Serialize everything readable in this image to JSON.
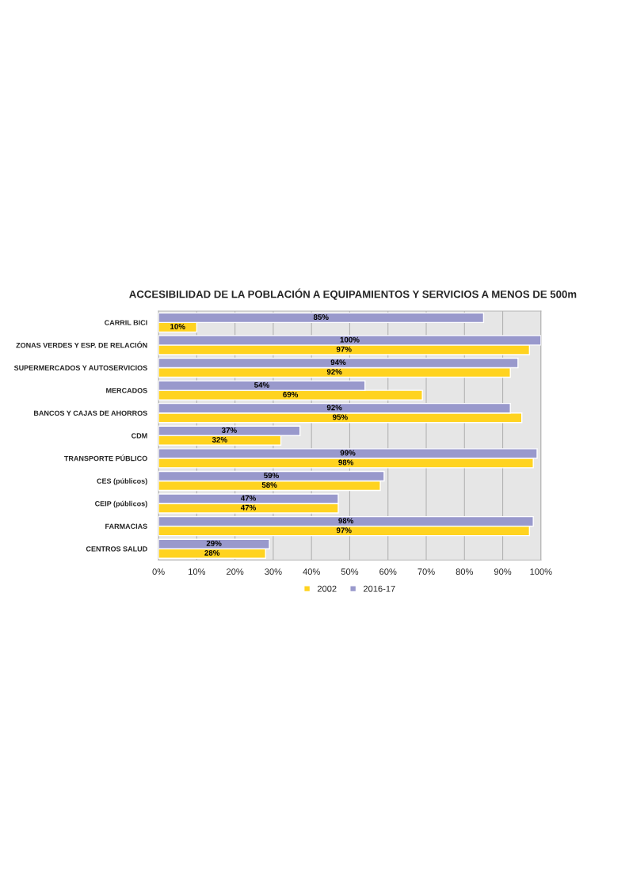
{
  "chart_data": {
    "type": "bar",
    "orientation": "horizontal",
    "title": "ACCESIBILIDAD DE LA POBLACIÓN A EQUIPAMIENTOS Y SERVICIOS A MENOS DE 500m",
    "categories": [
      "CARRIL BICI",
      "ZONAS VERDES Y ESP. DE RELACIÓN",
      "SUPERMERCADOS Y AUTOSERVICIOS",
      "MERCADOS",
      "BANCOS Y CAJAS DE AHORROS",
      "CDM",
      "TRANSPORTE PÚBLICO",
      "CES (públicos)",
      "CEIP (públicos)",
      "FARMACIAS",
      "CENTROS SALUD"
    ],
    "series": [
      {
        "name": "2002",
        "color": "#ffd320",
        "values": [
          10,
          97,
          92,
          69,
          95,
          32,
          98,
          58,
          47,
          97,
          28
        ],
        "value_labels": [
          "10%",
          "97%",
          "92%",
          "69%",
          "95%",
          "32%",
          "98%",
          "58%",
          "47%",
          "97%",
          "28%"
        ]
      },
      {
        "name": "2016-17",
        "color": "#9999cc",
        "values": [
          85,
          100,
          94,
          54,
          92,
          37,
          99,
          59,
          47,
          98,
          29
        ],
        "value_labels": [
          "85%",
          "100%",
          "94%",
          "54%",
          "92%",
          "37%",
          "99%",
          "59%",
          "47%",
          "98%",
          "29%"
        ]
      }
    ],
    "xlim": [
      0,
      100
    ],
    "xticks": [
      {
        "value": 0,
        "label": "0%"
      },
      {
        "value": 10,
        "label": "10%"
      },
      {
        "value": 20,
        "label": "20%"
      },
      {
        "value": 30,
        "label": "30%"
      },
      {
        "value": 40,
        "label": "40%"
      },
      {
        "value": 50,
        "label": "50%"
      },
      {
        "value": 60,
        "label": "60%"
      },
      {
        "value": 70,
        "label": "70%"
      },
      {
        "value": 80,
        "label": "80%"
      },
      {
        "value": 90,
        "label": "90%"
      },
      {
        "value": 100,
        "label": "100%"
      }
    ],
    "grid": "x",
    "legend": "bottom"
  }
}
